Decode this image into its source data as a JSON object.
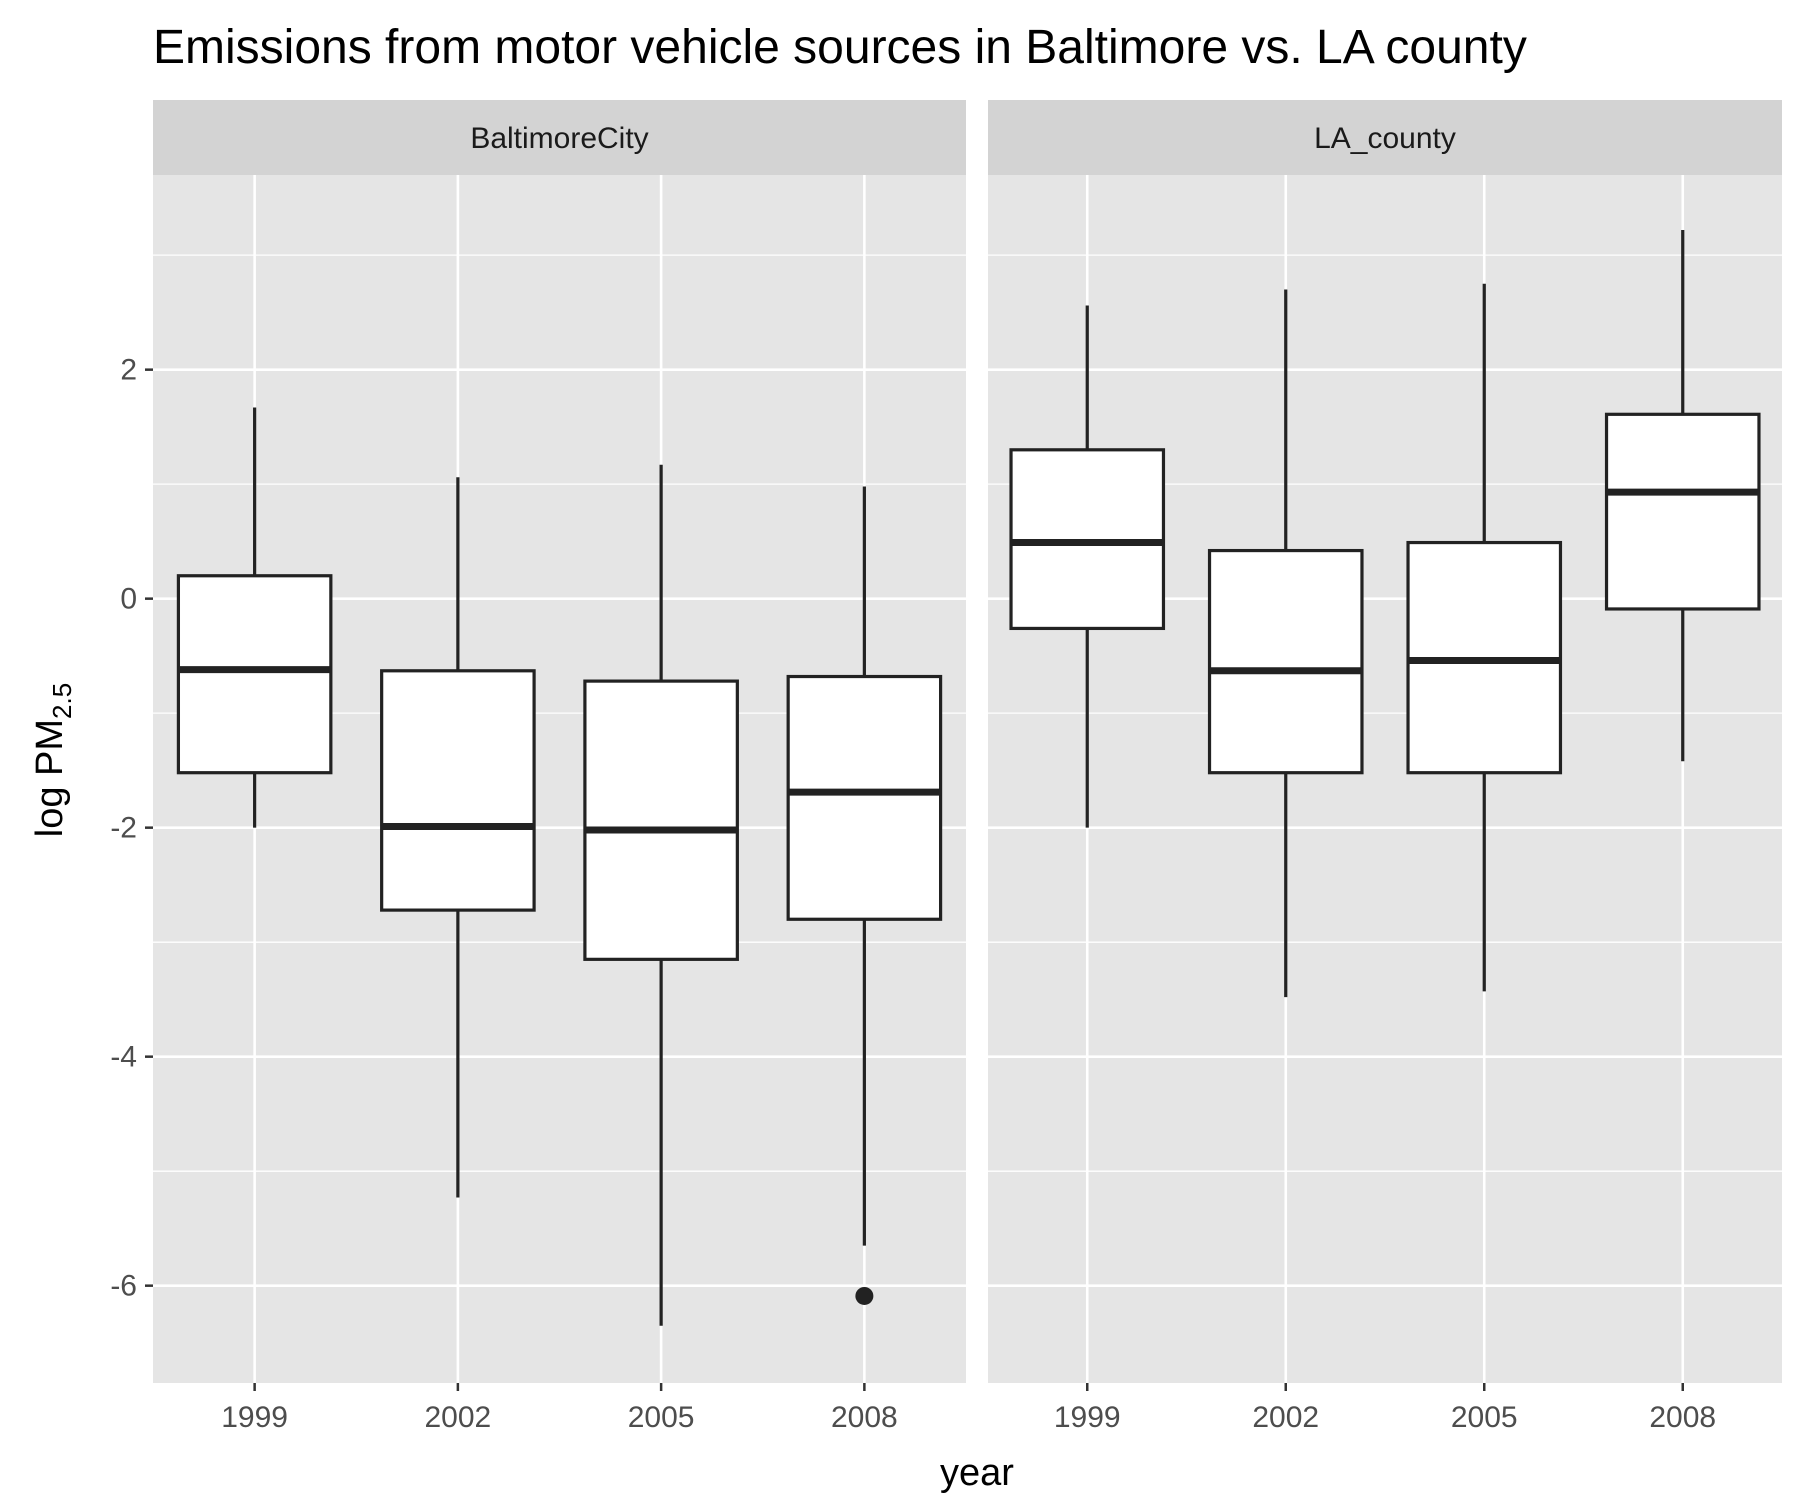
{
  "chart_data": {
    "type": "boxplot",
    "title": "Emissions from motor vehicle sources in Baltimore vs. LA county",
    "xlabel": "year",
    "ylabel_prefix": "log PM",
    "ylabel_subscript": "2.5",
    "ylim": [
      -6.85,
      3.7
    ],
    "y_ticks": [
      2,
      0,
      -2,
      -4,
      -6
    ],
    "y_tick_labels": [
      "2",
      "0",
      "-2",
      "-4",
      "-6"
    ],
    "categories": [
      "1999",
      "2002",
      "2005",
      "2008"
    ],
    "grid": true,
    "panels": [
      {
        "name": "BaltimoreCity",
        "boxes": [
          {
            "x": "1999",
            "whisker_low": -2.0,
            "q1": -1.52,
            "median": -0.62,
            "q3": 0.2,
            "whisker_high": 1.67,
            "outliers": []
          },
          {
            "x": "2002",
            "whisker_low": -5.23,
            "q1": -2.72,
            "median": -1.99,
            "q3": -0.63,
            "whisker_high": 1.06,
            "outliers": []
          },
          {
            "x": "2005",
            "whisker_low": -6.35,
            "q1": -3.15,
            "median": -2.02,
            "q3": -0.72,
            "whisker_high": 1.17,
            "outliers": []
          },
          {
            "x": "2008",
            "whisker_low": -5.65,
            "q1": -2.8,
            "median": -1.69,
            "q3": -0.68,
            "whisker_high": 0.98,
            "outliers": [
              -6.09
            ]
          }
        ]
      },
      {
        "name": "LA_county",
        "boxes": [
          {
            "x": "1999",
            "whisker_low": -2.0,
            "q1": -0.26,
            "median": 0.49,
            "q3": 1.3,
            "whisker_high": 2.56,
            "outliers": []
          },
          {
            "x": "2002",
            "whisker_low": -3.48,
            "q1": -1.52,
            "median": -0.63,
            "q3": 0.42,
            "whisker_high": 2.7,
            "outliers": []
          },
          {
            "x": "2005",
            "whisker_low": -3.43,
            "q1": -1.52,
            "median": -0.54,
            "q3": 0.49,
            "whisker_high": 2.75,
            "outliers": []
          },
          {
            "x": "2008",
            "whisker_low": -1.42,
            "q1": -0.09,
            "median": 0.93,
            "q3": 1.61,
            "whisker_high": 3.22,
            "outliers": []
          }
        ]
      }
    ],
    "colors": {
      "panel_background": "#e5e5e5",
      "grid": "#ffffff",
      "strip_background": "#d3d3d3",
      "box_fill": "#ffffff",
      "box_line": "#222222"
    }
  }
}
